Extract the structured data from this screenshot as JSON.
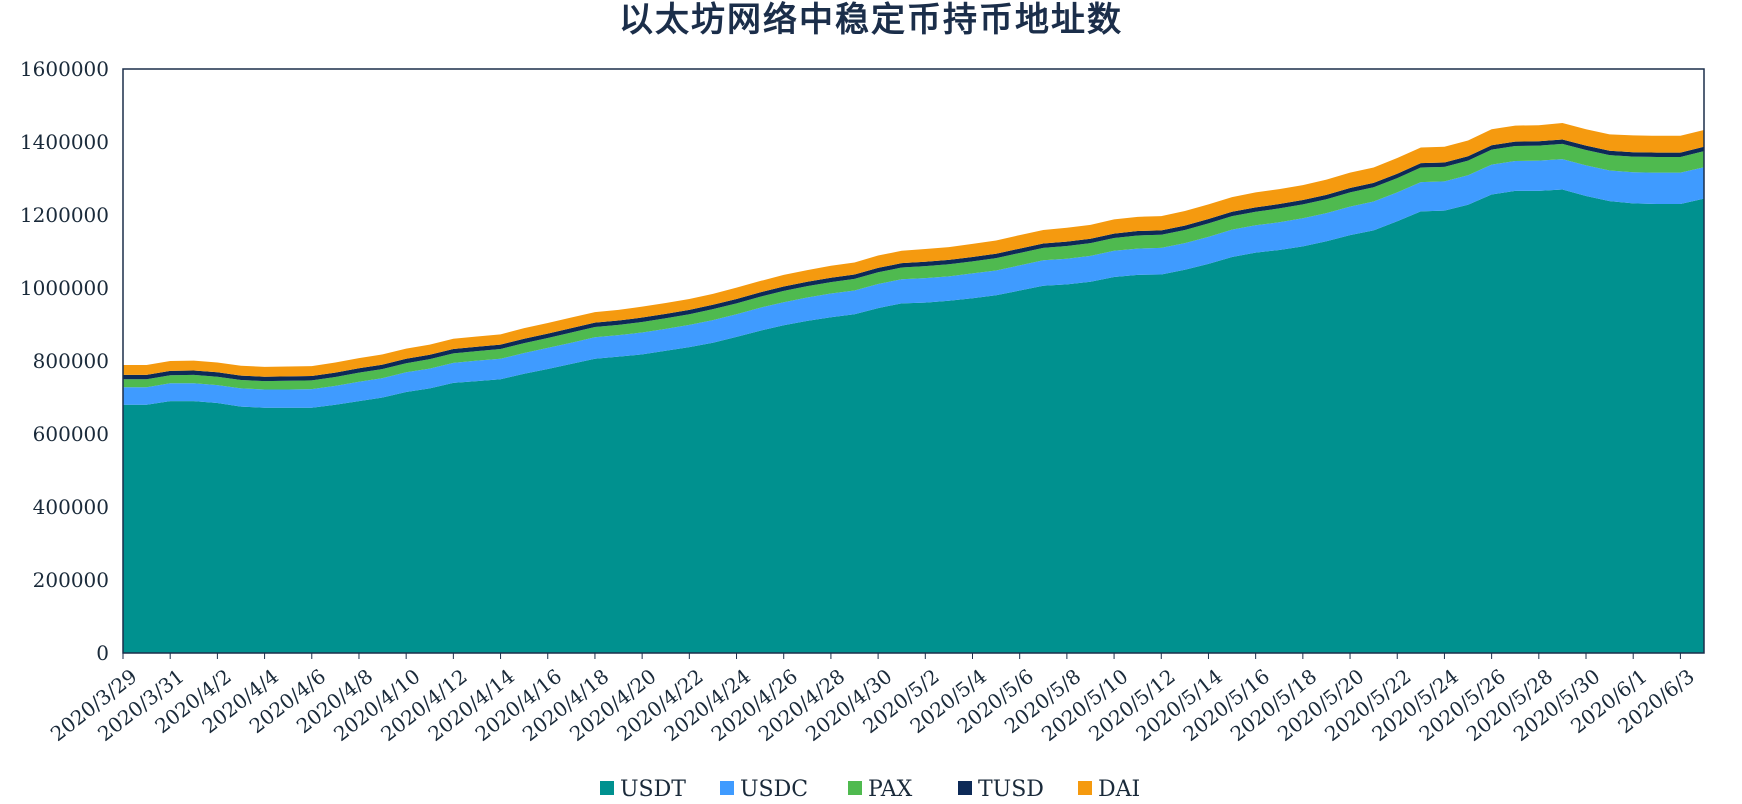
{
  "chart_data": {
    "type": "area",
    "stacked": true,
    "title": "以太坊网络中稳定币持币地址数",
    "xlabel": "",
    "ylabel": "",
    "ylim": [
      0,
      1600000
    ],
    "yticks": [
      0,
      200000,
      400000,
      600000,
      800000,
      1000000,
      1200000,
      1400000,
      1600000
    ],
    "ytick_labels": [
      "0",
      "200000",
      "400000",
      "600000",
      "800000",
      "1000000",
      "1200000",
      "1400000",
      "1600000"
    ],
    "grid": false,
    "legend_position": "bottom",
    "x": [
      "2020/3/29",
      "2020/3/30",
      "2020/3/31",
      "2020/4/1",
      "2020/4/2",
      "2020/4/3",
      "2020/4/4",
      "2020/4/5",
      "2020/4/6",
      "2020/4/7",
      "2020/4/8",
      "2020/4/9",
      "2020/4/10",
      "2020/4/11",
      "2020/4/12",
      "2020/4/13",
      "2020/4/14",
      "2020/4/15",
      "2020/4/16",
      "2020/4/17",
      "2020/4/18",
      "2020/4/19",
      "2020/4/20",
      "2020/4/21",
      "2020/4/22",
      "2020/4/23",
      "2020/4/24",
      "2020/4/25",
      "2020/4/26",
      "2020/4/27",
      "2020/4/28",
      "2020/4/29",
      "2020/4/30",
      "2020/5/1",
      "2020/5/2",
      "2020/5/3",
      "2020/5/4",
      "2020/5/5",
      "2020/5/6",
      "2020/5/7",
      "2020/5/8",
      "2020/5/9",
      "2020/5/10",
      "2020/5/11",
      "2020/5/12",
      "2020/5/13",
      "2020/5/14",
      "2020/5/15",
      "2020/5/16",
      "2020/5/17",
      "2020/5/18",
      "2020/5/19",
      "2020/5/20",
      "2020/5/21",
      "2020/5/22",
      "2020/5/23",
      "2020/5/24",
      "2020/5/25",
      "2020/5/26",
      "2020/5/27",
      "2020/5/28",
      "2020/5/29",
      "2020/5/30",
      "2020/5/31",
      "2020/6/1",
      "2020/6/2",
      "2020/6/3",
      "2020/6/4"
    ],
    "x_tick_labels": [
      "2020/3/29",
      "2020/3/31",
      "2020/4/2",
      "2020/4/4",
      "2020/4/6",
      "2020/4/8",
      "2020/4/10",
      "2020/4/12",
      "2020/4/14",
      "2020/4/16",
      "2020/4/18",
      "2020/4/20",
      "2020/4/22",
      "2020/4/24",
      "2020/4/26",
      "2020/4/28",
      "2020/4/30",
      "2020/5/2",
      "2020/5/4",
      "2020/5/6",
      "2020/5/8",
      "2020/5/10",
      "2020/5/12",
      "2020/5/14",
      "2020/5/16",
      "2020/5/18",
      "2020/5/20",
      "2020/5/22",
      "2020/5/24",
      "2020/5/26",
      "2020/5/28",
      "2020/5/30",
      "2020/6/1",
      "2020/6/3"
    ],
    "series": [
      {
        "name": "USDT",
        "color": "#00918F",
        "values": [
          680000,
          680000,
          690000,
          690000,
          685000,
          675000,
          672000,
          672000,
          672000,
          680000,
          690000,
          700000,
          715000,
          725000,
          740000,
          745000,
          750000,
          765000,
          778000,
          792000,
          806000,
          812000,
          818000,
          828000,
          838000,
          850000,
          866000,
          883000,
          898000,
          910000,
          920000,
          928000,
          945000,
          958000,
          960000,
          965000,
          972000,
          980000,
          993000,
          1006000,
          1010000,
          1017000,
          1030000,
          1036000,
          1037000,
          1050000,
          1066000,
          1085000,
          1097000,
          1104000,
          1114000,
          1128000,
          1145000,
          1158000,
          1183000,
          1210000,
          1212000,
          1228000,
          1256000,
          1266000,
          1266000,
          1270000,
          1252000,
          1238000,
          1232000,
          1230000,
          1230000,
          1245000
        ]
      },
      {
        "name": "USDC",
        "color": "#3F9BFF",
        "values": [
          48000,
          48000,
          49000,
          49000,
          49000,
          50000,
          50000,
          50000,
          51000,
          52000,
          53000,
          53000,
          54000,
          54000,
          55000,
          56000,
          56000,
          57000,
          58000,
          58000,
          59000,
          59000,
          60000,
          60000,
          61000,
          62000,
          62000,
          63000,
          63000,
          64000,
          65000,
          65000,
          66000,
          66000,
          67000,
          67000,
          68000,
          68000,
          69000,
          70000,
          70000,
          71000,
          72000,
          72000,
          73000,
          73000,
          74000,
          75000,
          75000,
          76000,
          77000,
          77000,
          78000,
          79000,
          79000,
          80000,
          80000,
          81000,
          82000,
          82000,
          83000,
          83000,
          84000,
          84000,
          85000,
          86000,
          86000,
          86000
        ]
      },
      {
        "name": "PAX",
        "color": "#4FBA4F",
        "values": [
          22000,
          22000,
          22000,
          23000,
          23000,
          23000,
          23000,
          24000,
          24000,
          24000,
          25000,
          25000,
          25000,
          26000,
          26000,
          26000,
          27000,
          27000,
          27000,
          28000,
          28000,
          28000,
          29000,
          29000,
          29000,
          30000,
          30000,
          30000,
          31000,
          31000,
          31000,
          32000,
          32000,
          32000,
          33000,
          33000,
          33000,
          34000,
          34000,
          34000,
          35000,
          35000,
          35000,
          36000,
          36000,
          36000,
          37000,
          37000,
          37000,
          38000,
          38000,
          38000,
          39000,
          39000,
          39000,
          40000,
          40000,
          40000,
          41000,
          41000,
          41000,
          42000,
          42000,
          42000,
          43000,
          43000,
          43000,
          44000
        ]
      },
      {
        "name": "TUSD",
        "color": "#0D2A57",
        "values": [
          12000,
          12000,
          12000,
          12000,
          12000,
          12000,
          12000,
          12000,
          12000,
          12000,
          12000,
          12000,
          12000,
          12000,
          12000,
          12000,
          12000,
          12000,
          12000,
          12000,
          12000,
          12000,
          12000,
          12000,
          12000,
          12000,
          12000,
          12000,
          12000,
          12000,
          12000,
          12000,
          12000,
          12000,
          12000,
          12000,
          12000,
          12000,
          12000,
          12000,
          12000,
          12000,
          12000,
          12000,
          12000,
          12000,
          12000,
          12000,
          12000,
          12000,
          12000,
          12000,
          12000,
          12000,
          12000,
          12000,
          12000,
          12000,
          12000,
          12000,
          12000,
          12000,
          12000,
          12000,
          12000,
          12000,
          12000,
          12000
        ]
      },
      {
        "name": "DAI",
        "color": "#F59A0F",
        "values": [
          27000,
          27000,
          27000,
          27000,
          27000,
          27000,
          27000,
          27000,
          27000,
          28000,
          28000,
          28000,
          28000,
          28000,
          28000,
          28000,
          28000,
          29000,
          29000,
          29000,
          29000,
          29000,
          30000,
          30000,
          30000,
          30000,
          31000,
          31000,
          32000,
          32000,
          33000,
          33000,
          34000,
          34000,
          35000,
          35000,
          36000,
          36000,
          37000,
          37000,
          38000,
          38000,
          39000,
          39000,
          39000,
          40000,
          40000,
          40000,
          41000,
          41000,
          41000,
          42000,
          42000,
          42000,
          43000,
          43000,
          43000,
          43000,
          44000,
          44000,
          44000,
          45000,
          45000,
          45000,
          46000,
          46000,
          46000,
          46000
        ]
      }
    ]
  }
}
